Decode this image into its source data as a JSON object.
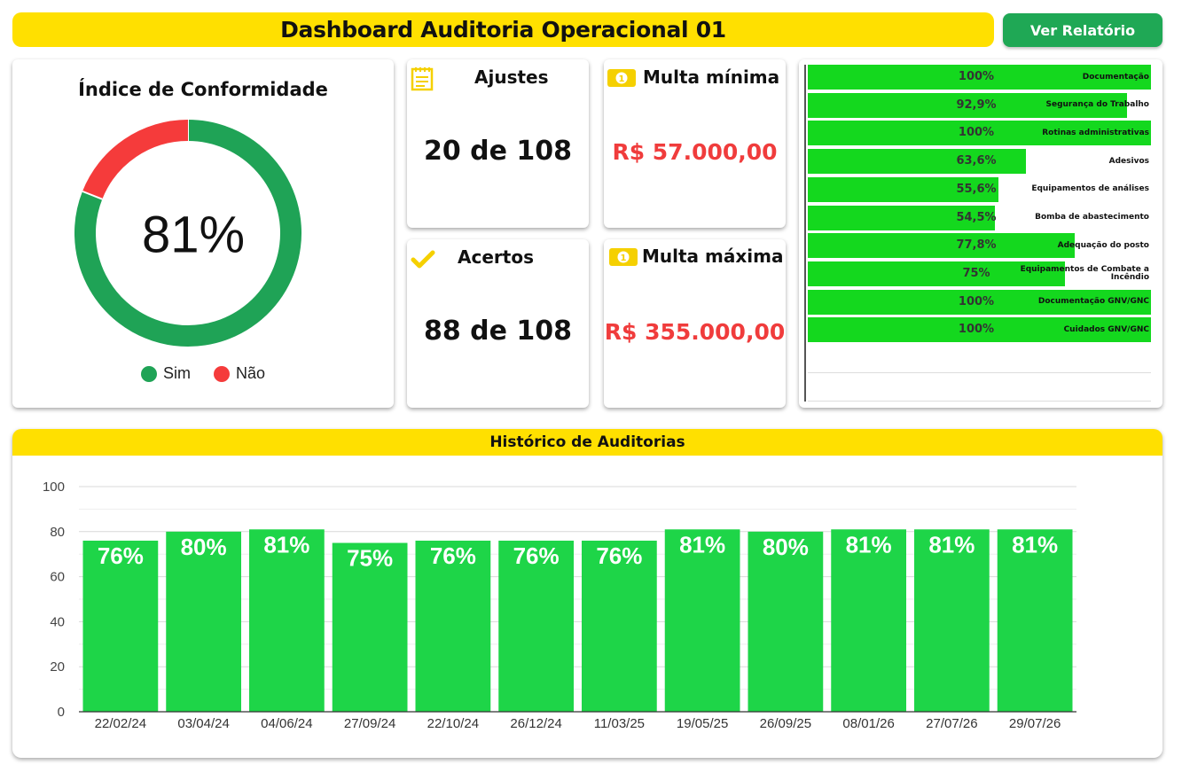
{
  "header": {
    "title": "Dashboard Auditoria Operacional 01",
    "report_button": "Ver Relatório"
  },
  "conformity": {
    "title": "Índice de Conformidade",
    "center_label": "81%",
    "chart_data": {
      "type": "pie",
      "categories": [
        "Sim",
        "Não"
      ],
      "values": [
        81,
        19
      ],
      "colors": [
        "#1fa356",
        "#f53b3b"
      ]
    },
    "legend": [
      {
        "label": "Sim",
        "color": "#1fa356"
      },
      {
        "label": "Não",
        "color": "#f53b3b"
      }
    ]
  },
  "kpis": {
    "ajustes": {
      "title": "Ajustes",
      "value": "20 de 108",
      "icon": "notepad-icon"
    },
    "acertos": {
      "title": "Acertos",
      "value": "88 de 108",
      "icon": "checkmark-icon"
    },
    "multa_minima": {
      "title": "Multa mínima",
      "value": "R$ 57.000,00",
      "icon": "money-icon"
    },
    "multa_maxima": {
      "title": "Multa máxima",
      "value": "R$ 355.000,00",
      "icon": "money-icon"
    }
  },
  "categories": {
    "chart_data": {
      "type": "bar",
      "orientation": "horizontal",
      "xlim": [
        0,
        100
      ],
      "bar_color": "#14d81e",
      "items": [
        {
          "name": "Documentação",
          "value": 100,
          "label": "100%"
        },
        {
          "name": "Segurança do Trabalho",
          "value": 92.9,
          "label": "92,9%"
        },
        {
          "name": "Rotinas administrativas",
          "value": 100,
          "label": "100%"
        },
        {
          "name": "Adesivos",
          "value": 63.6,
          "label": "63,6%"
        },
        {
          "name": "Equipamentos de análises",
          "value": 55.6,
          "label": "55,6%"
        },
        {
          "name": "Bomba de abastecimento",
          "value": 54.5,
          "label": "54,5%"
        },
        {
          "name": "Adequação do posto",
          "value": 77.8,
          "label": "77,8%"
        },
        {
          "name": "Equipamentos de Combate a Incêndio",
          "value": 75,
          "label": "75%"
        },
        {
          "name": "Documentação GNV/GNC",
          "value": 100,
          "label": "100%"
        },
        {
          "name": "Cuidados GNV/GNC",
          "value": 100,
          "label": "100%"
        }
      ]
    }
  },
  "history": {
    "title": "Histórico de Auditorias",
    "chart_data": {
      "type": "bar",
      "categories": [
        "22/02/24",
        "03/04/24",
        "04/06/24",
        "27/09/24",
        "22/10/24",
        "26/12/24",
        "11/03/25",
        "19/05/25",
        "26/09/25",
        "08/01/26",
        "27/07/26",
        "29/07/26"
      ],
      "values": [
        76,
        80,
        81,
        75,
        76,
        76,
        76,
        81,
        80,
        81,
        81,
        81
      ],
      "labels": [
        "76%",
        "80%",
        "81%",
        "75%",
        "76%",
        "76%",
        "76%",
        "81%",
        "80%",
        "81%",
        "81%",
        "81%"
      ],
      "ylim": [
        0,
        100
      ],
      "yticks": [
        0,
        20,
        40,
        60,
        80,
        100
      ],
      "grid": true,
      "bar_color": "#1ed548"
    }
  }
}
